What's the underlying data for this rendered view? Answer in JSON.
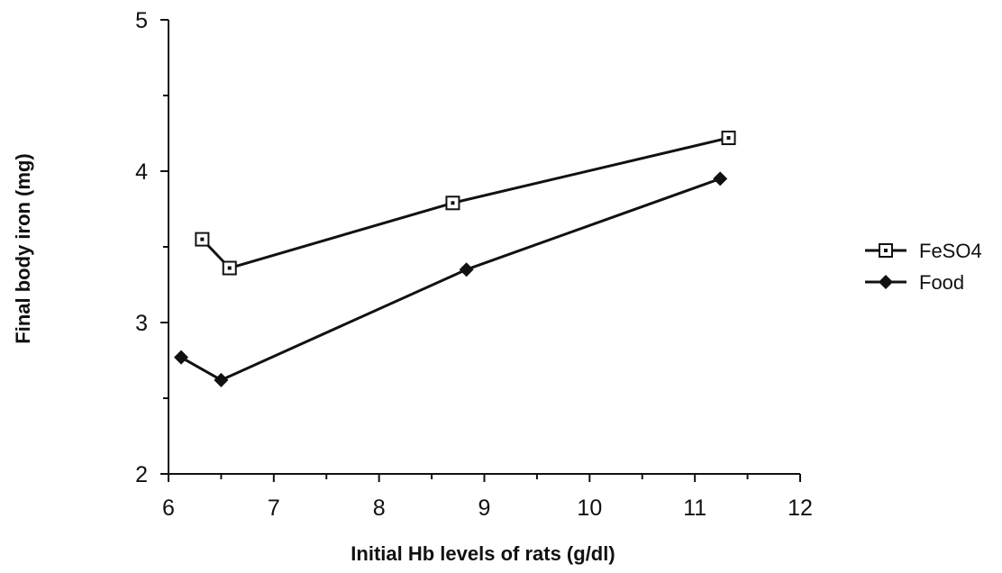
{
  "chart_data": {
    "type": "line",
    "title": "",
    "xlabel": "Initial Hb levels of rats (g/dl)",
    "ylabel": "Final body iron (mg)",
    "xlim": [
      6,
      12
    ],
    "ylim": [
      2,
      5
    ],
    "xticks": [
      6,
      7,
      8,
      9,
      10,
      11,
      12
    ],
    "yticks": [
      2,
      3,
      4,
      5
    ],
    "grid": false,
    "legend": "right",
    "series": [
      {
        "name": "FeSO4",
        "marker": "open-square",
        "color": "#111111",
        "x": [
          6.32,
          6.58,
          8.7,
          11.32
        ],
        "y": [
          3.55,
          3.36,
          3.79,
          4.22
        ]
      },
      {
        "name": "Food",
        "marker": "filled-diamond",
        "color": "#111111",
        "x": [
          6.12,
          6.5,
          8.83,
          11.24
        ],
        "y": [
          2.77,
          2.62,
          3.35,
          3.95
        ]
      }
    ]
  }
}
